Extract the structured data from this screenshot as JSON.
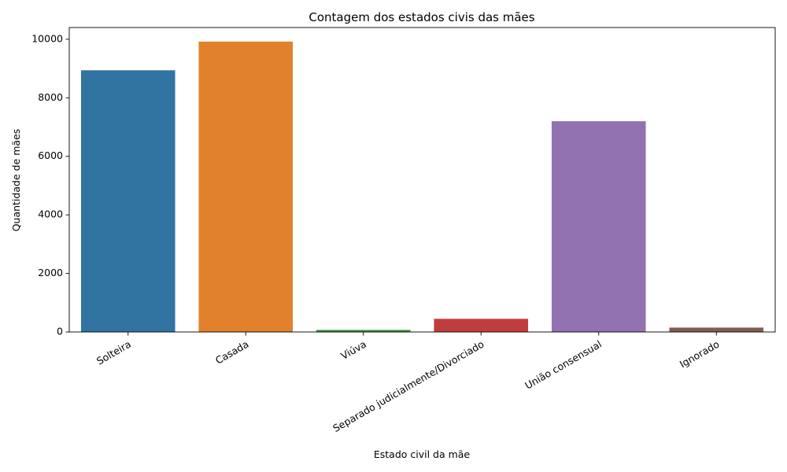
{
  "chart_data": {
    "type": "bar",
    "title": "Contagem dos estados civis das mães",
    "xlabel": "Estado civil da mãe",
    "ylabel": "Quantidade de mães",
    "categories": [
      "Solteira",
      "Casada",
      "Viúva",
      "Separado judicialmente/Divorciado",
      "União consensual",
      "Ignorado"
    ],
    "values": [
      8940,
      9920,
      70,
      450,
      7200,
      150
    ],
    "colors": [
      "#3274a1",
      "#e1812c",
      "#3a923a",
      "#c03d3e",
      "#9372b2",
      "#845b53"
    ],
    "ylim": [
      0,
      10400
    ],
    "yticks": [
      0,
      2000,
      4000,
      6000,
      8000,
      10000
    ],
    "ytick_labels": [
      "0",
      "2000",
      "4000",
      "6000",
      "8000",
      "10000"
    ],
    "grid": false,
    "legend": false
  }
}
